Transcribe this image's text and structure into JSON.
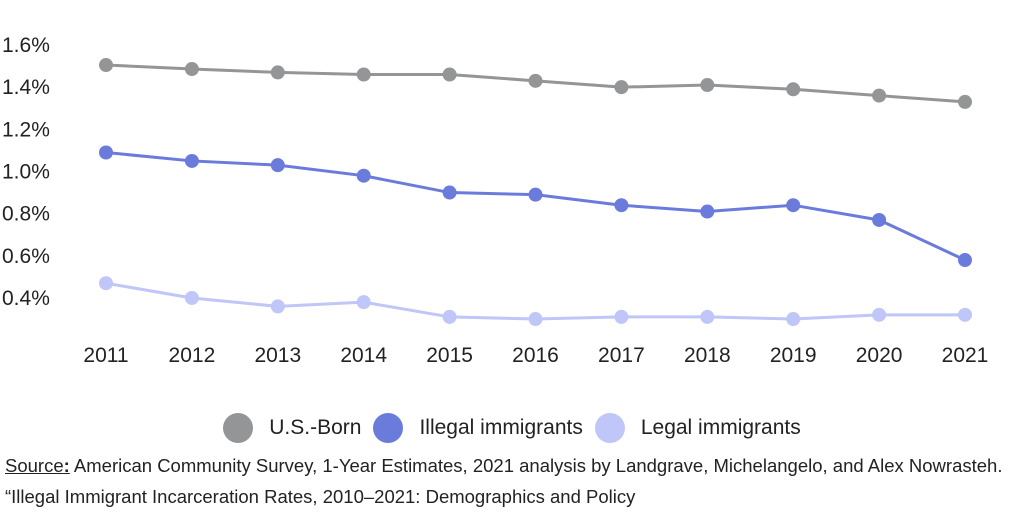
{
  "chart_data": {
    "type": "line",
    "title": "",
    "xlabel": "",
    "ylabel": "",
    "x": [
      2011,
      2012,
      2013,
      2014,
      2015,
      2016,
      2017,
      2018,
      2019,
      2020,
      2021
    ],
    "x_tick_labels": [
      "2011",
      "2012",
      "2013",
      "2014",
      "2015",
      "2016",
      "2017",
      "2018",
      "2019",
      "2020",
      "2021"
    ],
    "y_tick_values": [
      0.4,
      0.6,
      0.8,
      1.0,
      1.2,
      1.4,
      1.6
    ],
    "y_tick_labels": [
      "0.4%",
      "0.6%",
      "0.8%",
      "1.0%",
      "1.2%",
      "1.4%",
      "1.6%"
    ],
    "ylim": [
      0.3,
      1.6
    ],
    "grid": false,
    "legend_placement": "bottom-center",
    "series": [
      {
        "name": "U.S.-Born",
        "color": "#939597",
        "values": [
          1.505,
          1.486,
          1.47,
          1.46,
          1.46,
          1.43,
          1.4,
          1.41,
          1.39,
          1.36,
          1.33
        ]
      },
      {
        "name": "Illegal immigrants",
        "color": "#6b7bdc",
        "values": [
          1.09,
          1.05,
          1.03,
          0.98,
          0.9,
          0.89,
          0.84,
          0.81,
          0.84,
          0.77,
          0.58
        ]
      },
      {
        "name": "Legal immigrants",
        "color": "#c0c6f7",
        "values": [
          0.47,
          0.4,
          0.36,
          0.38,
          0.31,
          0.3,
          0.31,
          0.31,
          0.3,
          0.32,
          0.32
        ]
      }
    ]
  },
  "source": {
    "label": "Source",
    "colon": ":",
    "text": " American Community Survey, 1-Year Estimates, 2021 analysis by Landgrave, Michelangelo, and Alex Nowrasteh. “Illegal Immigrant Incarceration Rates, 2010–2021: Demographics and Policy"
  }
}
